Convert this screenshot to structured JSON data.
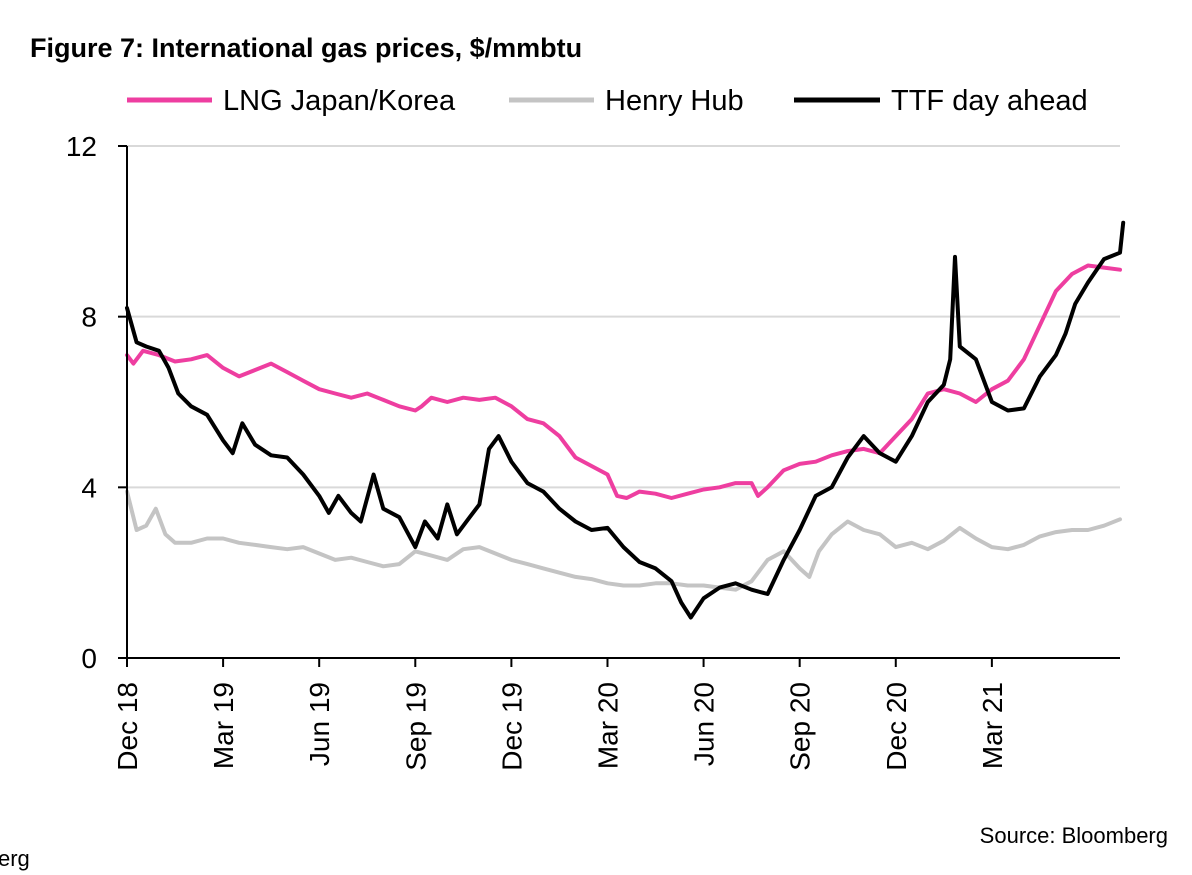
{
  "chart_data": {
    "type": "line",
    "title": "Figure 7: International gas prices, $/mmbtu",
    "source": "Source: Bloomberg",
    "edge_fragment": "erg",
    "xlabel": "",
    "ylabel": "",
    "ylim": [
      0,
      12
    ],
    "yticks": [
      0,
      4,
      8,
      12
    ],
    "x_start": "Dec 18",
    "x_end": "Jun 21",
    "x_months": 31,
    "xticks": [
      {
        "label": "Dec 18",
        "month": 0
      },
      {
        "label": "Mar 19",
        "month": 3
      },
      {
        "label": "Jun 19",
        "month": 6
      },
      {
        "label": "Sep 19",
        "month": 9
      },
      {
        "label": "Dec 19",
        "month": 12
      },
      {
        "label": "Mar 20",
        "month": 15
      },
      {
        "label": "Jun 20",
        "month": 18
      },
      {
        "label": "Sep 20",
        "month": 21
      },
      {
        "label": "Dec 20",
        "month": 24
      },
      {
        "label": "Mar 21",
        "month": 27
      }
    ],
    "grid": true,
    "legend_position": "top",
    "series": [
      {
        "name": "LNG Japan/Korea",
        "color": "#ee3ea0",
        "points": [
          [
            0.0,
            7.1
          ],
          [
            0.2,
            6.9
          ],
          [
            0.5,
            7.2
          ],
          [
            1.0,
            7.1
          ],
          [
            1.5,
            6.95
          ],
          [
            2.0,
            7.0
          ],
          [
            2.5,
            7.1
          ],
          [
            3.0,
            6.8
          ],
          [
            3.5,
            6.6
          ],
          [
            4.0,
            6.75
          ],
          [
            4.5,
            6.9
          ],
          [
            5.0,
            6.7
          ],
          [
            5.5,
            6.5
          ],
          [
            6.0,
            6.3
          ],
          [
            6.5,
            6.2
          ],
          [
            7.0,
            6.1
          ],
          [
            7.5,
            6.2
          ],
          [
            8.0,
            6.05
          ],
          [
            8.5,
            5.9
          ],
          [
            9.0,
            5.8
          ],
          [
            9.2,
            5.9
          ],
          [
            9.5,
            6.1
          ],
          [
            10.0,
            6.0
          ],
          [
            10.5,
            6.1
          ],
          [
            11.0,
            6.05
          ],
          [
            11.5,
            6.1
          ],
          [
            12.0,
            5.9
          ],
          [
            12.5,
            5.6
          ],
          [
            13.0,
            5.5
          ],
          [
            13.5,
            5.2
          ],
          [
            14.0,
            4.7
          ],
          [
            14.5,
            4.5
          ],
          [
            15.0,
            4.3
          ],
          [
            15.3,
            3.8
          ],
          [
            15.6,
            3.75
          ],
          [
            16.0,
            3.9
          ],
          [
            16.5,
            3.85
          ],
          [
            17.0,
            3.75
          ],
          [
            17.5,
            3.85
          ],
          [
            18.0,
            3.95
          ],
          [
            18.5,
            4.0
          ],
          [
            19.0,
            4.1
          ],
          [
            19.5,
            4.1
          ],
          [
            19.7,
            3.8
          ],
          [
            20.0,
            4.0
          ],
          [
            20.5,
            4.4
          ],
          [
            21.0,
            4.55
          ],
          [
            21.5,
            4.6
          ],
          [
            22.0,
            4.75
          ],
          [
            22.5,
            4.85
          ],
          [
            23.0,
            4.9
          ],
          [
            23.5,
            4.8
          ],
          [
            24.0,
            5.2
          ],
          [
            24.5,
            5.6
          ],
          [
            25.0,
            6.2
          ],
          [
            25.5,
            6.3
          ],
          [
            26.0,
            6.2
          ],
          [
            26.5,
            6.0
          ],
          [
            27.0,
            6.3
          ],
          [
            27.5,
            6.5
          ],
          [
            28.0,
            7.0
          ],
          [
            28.5,
            7.8
          ],
          [
            29.0,
            8.6
          ],
          [
            29.5,
            9.0
          ],
          [
            30.0,
            9.2
          ],
          [
            30.5,
            9.15
          ],
          [
            31.0,
            9.1
          ]
        ]
      },
      {
        "name": "Henry Hub",
        "color": "#c4c4c4",
        "points": [
          [
            0.0,
            3.9
          ],
          [
            0.3,
            3.0
          ],
          [
            0.6,
            3.1
          ],
          [
            0.9,
            3.5
          ],
          [
            1.2,
            2.9
          ],
          [
            1.5,
            2.7
          ],
          [
            2.0,
            2.7
          ],
          [
            2.5,
            2.8
          ],
          [
            3.0,
            2.8
          ],
          [
            3.5,
            2.7
          ],
          [
            4.0,
            2.65
          ],
          [
            4.5,
            2.6
          ],
          [
            5.0,
            2.55
          ],
          [
            5.5,
            2.6
          ],
          [
            6.0,
            2.45
          ],
          [
            6.5,
            2.3
          ],
          [
            7.0,
            2.35
          ],
          [
            7.5,
            2.25
          ],
          [
            8.0,
            2.15
          ],
          [
            8.5,
            2.2
          ],
          [
            9.0,
            2.5
          ],
          [
            9.5,
            2.4
          ],
          [
            10.0,
            2.3
          ],
          [
            10.5,
            2.55
          ],
          [
            11.0,
            2.6
          ],
          [
            11.5,
            2.45
          ],
          [
            12.0,
            2.3
          ],
          [
            12.5,
            2.2
          ],
          [
            13.0,
            2.1
          ],
          [
            13.5,
            2.0
          ],
          [
            14.0,
            1.9
          ],
          [
            14.5,
            1.85
          ],
          [
            15.0,
            1.75
          ],
          [
            15.5,
            1.7
          ],
          [
            16.0,
            1.7
          ],
          [
            16.5,
            1.75
          ],
          [
            17.0,
            1.75
          ],
          [
            17.5,
            1.7
          ],
          [
            18.0,
            1.7
          ],
          [
            18.5,
            1.65
          ],
          [
            19.0,
            1.6
          ],
          [
            19.5,
            1.8
          ],
          [
            20.0,
            2.3
          ],
          [
            20.5,
            2.5
          ],
          [
            21.0,
            2.1
          ],
          [
            21.3,
            1.9
          ],
          [
            21.6,
            2.5
          ],
          [
            22.0,
            2.9
          ],
          [
            22.5,
            3.2
          ],
          [
            23.0,
            3.0
          ],
          [
            23.5,
            2.9
          ],
          [
            24.0,
            2.6
          ],
          [
            24.5,
            2.7
          ],
          [
            25.0,
            2.55
          ],
          [
            25.5,
            2.75
          ],
          [
            26.0,
            3.05
          ],
          [
            26.5,
            2.8
          ],
          [
            27.0,
            2.6
          ],
          [
            27.5,
            2.55
          ],
          [
            28.0,
            2.65
          ],
          [
            28.5,
            2.85
          ],
          [
            29.0,
            2.95
          ],
          [
            29.5,
            3.0
          ],
          [
            30.0,
            3.0
          ],
          [
            30.5,
            3.1
          ],
          [
            31.0,
            3.25
          ]
        ]
      },
      {
        "name": "TTF day ahead",
        "color": "#000000",
        "points": [
          [
            0.0,
            8.2
          ],
          [
            0.3,
            7.4
          ],
          [
            0.6,
            7.3
          ],
          [
            1.0,
            7.2
          ],
          [
            1.3,
            6.8
          ],
          [
            1.6,
            6.2
          ],
          [
            2.0,
            5.9
          ],
          [
            2.5,
            5.7
          ],
          [
            3.0,
            5.1
          ],
          [
            3.3,
            4.8
          ],
          [
            3.6,
            5.5
          ],
          [
            4.0,
            5.0
          ],
          [
            4.5,
            4.75
          ],
          [
            5.0,
            4.7
          ],
          [
            5.5,
            4.3
          ],
          [
            6.0,
            3.8
          ],
          [
            6.3,
            3.4
          ],
          [
            6.6,
            3.8
          ],
          [
            7.0,
            3.4
          ],
          [
            7.3,
            3.2
          ],
          [
            7.7,
            4.3
          ],
          [
            8.0,
            3.5
          ],
          [
            8.5,
            3.3
          ],
          [
            9.0,
            2.6
          ],
          [
            9.3,
            3.2
          ],
          [
            9.7,
            2.8
          ],
          [
            10.0,
            3.6
          ],
          [
            10.3,
            2.9
          ],
          [
            10.7,
            3.3
          ],
          [
            11.0,
            3.6
          ],
          [
            11.3,
            4.9
          ],
          [
            11.6,
            5.2
          ],
          [
            12.0,
            4.6
          ],
          [
            12.5,
            4.1
          ],
          [
            13.0,
            3.9
          ],
          [
            13.5,
            3.5
          ],
          [
            14.0,
            3.2
          ],
          [
            14.5,
            3.0
          ],
          [
            15.0,
            3.05
          ],
          [
            15.5,
            2.6
          ],
          [
            16.0,
            2.25
          ],
          [
            16.5,
            2.1
          ],
          [
            17.0,
            1.8
          ],
          [
            17.3,
            1.3
          ],
          [
            17.6,
            0.95
          ],
          [
            18.0,
            1.4
          ],
          [
            18.5,
            1.65
          ],
          [
            19.0,
            1.75
          ],
          [
            19.5,
            1.6
          ],
          [
            20.0,
            1.5
          ],
          [
            20.5,
            2.3
          ],
          [
            21.0,
            3.0
          ],
          [
            21.5,
            3.8
          ],
          [
            22.0,
            4.0
          ],
          [
            22.5,
            4.7
          ],
          [
            23.0,
            5.2
          ],
          [
            23.5,
            4.8
          ],
          [
            24.0,
            4.6
          ],
          [
            24.5,
            5.2
          ],
          [
            25.0,
            6.0
          ],
          [
            25.5,
            6.4
          ],
          [
            25.7,
            7.0
          ],
          [
            25.85,
            9.4
          ],
          [
            26.0,
            7.3
          ],
          [
            26.5,
            7.0
          ],
          [
            27.0,
            6.0
          ],
          [
            27.5,
            5.8
          ],
          [
            28.0,
            5.85
          ],
          [
            28.5,
            6.6
          ],
          [
            29.0,
            7.1
          ],
          [
            29.3,
            7.6
          ],
          [
            29.6,
            8.3
          ],
          [
            30.0,
            8.8
          ],
          [
            30.5,
            9.35
          ],
          [
            31.0,
            9.5
          ],
          [
            31.1,
            10.2
          ]
        ]
      }
    ]
  }
}
